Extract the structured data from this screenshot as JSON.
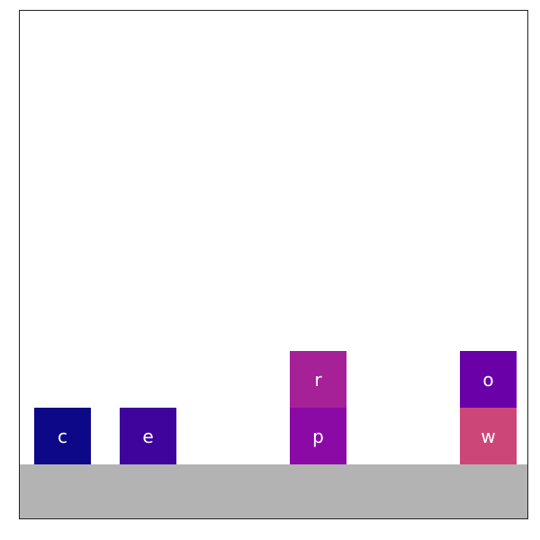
{
  "scene": {
    "floor_color": "#b3b3b3",
    "border_color": "#222222",
    "background": "#ffffff"
  },
  "blocks": [
    {
      "id": "c",
      "label": "c",
      "color": "#0d0887",
      "column": 0,
      "level": 0
    },
    {
      "id": "e",
      "label": "e",
      "color": "#3e049c",
      "column": 1,
      "level": 0
    },
    {
      "id": "p",
      "label": "p",
      "color": "#8b0aa5",
      "column": 3,
      "level": 0
    },
    {
      "id": "r",
      "label": "r",
      "color": "#a62098",
      "column": 3,
      "level": 1
    },
    {
      "id": "w",
      "label": "w",
      "color": "#cc4778",
      "column": 5,
      "level": 0
    },
    {
      "id": "o",
      "label": "o",
      "color": "#6a00a8",
      "column": 5,
      "level": 1
    }
  ]
}
